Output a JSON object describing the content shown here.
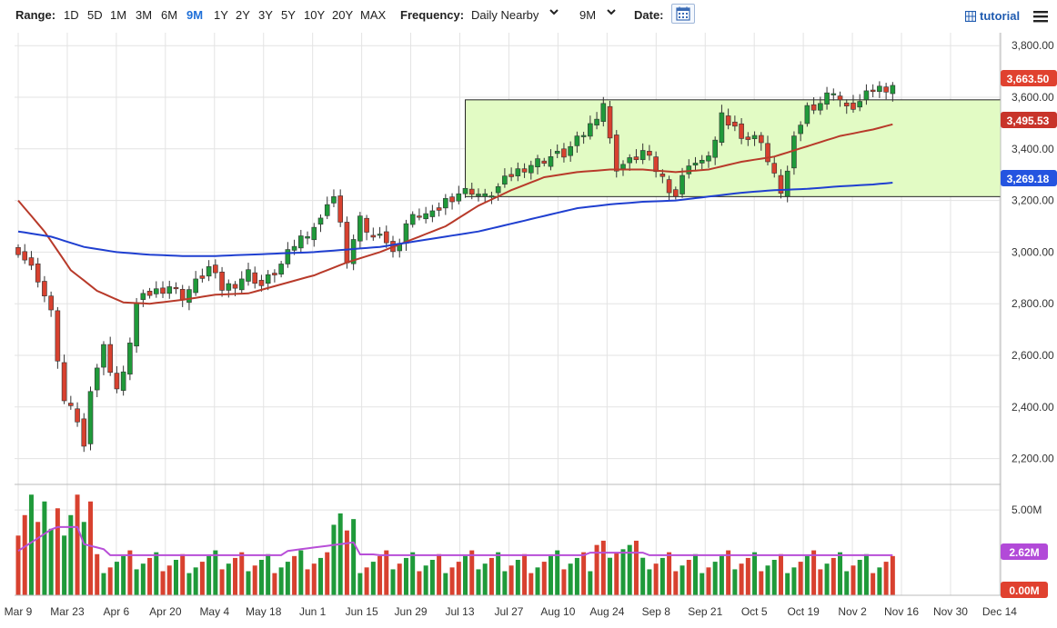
{
  "toolbar": {
    "range_label": "Range:",
    "ranges": [
      "1D",
      "5D",
      "1M",
      "3M",
      "6M",
      "9M",
      "1Y",
      "2Y",
      "3Y",
      "5Y",
      "10Y",
      "20Y",
      "MAX"
    ],
    "active_range": "9M",
    "frequency_label": "Frequency:",
    "frequency_value": "Daily Nearby",
    "period_value": "9M",
    "date_label": "Date:",
    "tutorial_label": "tutorial",
    "icons": [
      "chevron-down-icon",
      "calendar-icon",
      "tutorial-icon",
      "menu-icon"
    ]
  },
  "chart_data": {
    "type": "candlestick",
    "title": "",
    "price_ticks": [
      "3,800.00",
      "3,600.00",
      "3,400.00",
      "3,200.00",
      "3,000.00",
      "2,800.00",
      "2,600.00",
      "2,400.00",
      "2,200.00"
    ],
    "ylim": [
      2100,
      3850
    ],
    "volume_ticks": [
      "5.00M"
    ],
    "volume_ylim": [
      0,
      6.5
    ],
    "x_ticks": [
      "Mar 9",
      "Mar 23",
      "Apr 6",
      "Apr 20",
      "May 4",
      "May 18",
      "Jun 1",
      "Jun 15",
      "Jun 29",
      "Jul 13",
      "Jul 27",
      "Aug 10",
      "Aug 24",
      "Sep 8",
      "Sep 21",
      "Oct 5",
      "Oct 19",
      "Nov 2",
      "Nov 16",
      "Nov 30",
      "Dec 14"
    ],
    "price_anchors": [
      [
        0,
        3010
      ],
      [
        3,
        2900
      ],
      [
        5,
        2760
      ],
      [
        7,
        2420
      ],
      [
        9,
        2350
      ],
      [
        10,
        2240
      ],
      [
        11,
        2480
      ],
      [
        13,
        2630
      ],
      [
        15,
        2470
      ],
      [
        16,
        2520
      ],
      [
        18,
        2800
      ],
      [
        20,
        2840
      ],
      [
        23,
        2870
      ],
      [
        25,
        2830
      ],
      [
        27,
        2880
      ],
      [
        29,
        2940
      ],
      [
        31,
        2860
      ],
      [
        33,
        2880
      ],
      [
        35,
        2920
      ],
      [
        37,
        2870
      ],
      [
        40,
        2950
      ],
      [
        42,
        3030
      ],
      [
        44,
        3080
      ],
      [
        46,
        3120
      ],
      [
        47,
        3200
      ],
      [
        48,
        3215
      ],
      [
        49,
        3100
      ],
      [
        50,
        2970
      ],
      [
        52,
        3120
      ],
      [
        54,
        3050
      ],
      [
        55,
        3090
      ],
      [
        57,
        2990
      ],
      [
        59,
        3110
      ],
      [
        61,
        3150
      ],
      [
        63,
        3140
      ],
      [
        65,
        3200
      ],
      [
        67,
        3230
      ],
      [
        69,
        3240
      ],
      [
        71,
        3210
      ],
      [
        73,
        3250
      ],
      [
        75,
        3300
      ],
      [
        77,
        3330
      ],
      [
        79,
        3350
      ],
      [
        81,
        3370
      ],
      [
        83,
        3380
      ],
      [
        85,
        3430
      ],
      [
        87,
        3490
      ],
      [
        89,
        3580
      ],
      [
        90,
        3430
      ],
      [
        91,
        3330
      ],
      [
        93,
        3350
      ],
      [
        95,
        3390
      ],
      [
        97,
        3320
      ],
      [
        99,
        3250
      ],
      [
        100,
        3220
      ],
      [
        102,
        3350
      ],
      [
        104,
        3340
      ],
      [
        106,
        3430
      ],
      [
        107,
        3520
      ],
      [
        109,
        3480
      ],
      [
        111,
        3440
      ],
      [
        113,
        3440
      ],
      [
        114,
        3350
      ],
      [
        115,
        3290
      ],
      [
        116,
        3240
      ],
      [
        117,
        3310
      ],
      [
        118,
        3430
      ],
      [
        119,
        3500
      ],
      [
        120,
        3560
      ],
      [
        122,
        3580
      ],
      [
        124,
        3630
      ],
      [
        126,
        3550
      ],
      [
        128,
        3580
      ],
      [
        130,
        3630
      ],
      [
        132,
        3640
      ],
      [
        133,
        3650
      ]
    ],
    "series": [
      {
        "name": "",
        "type": "moving-average",
        "color": "#b83a2a",
        "anchors": [
          [
            0,
            3200
          ],
          [
            4,
            3080
          ],
          [
            8,
            2930
          ],
          [
            12,
            2850
          ],
          [
            16,
            2805
          ],
          [
            20,
            2800
          ],
          [
            25,
            2815
          ],
          [
            30,
            2835
          ],
          [
            35,
            2840
          ],
          [
            40,
            2875
          ],
          [
            45,
            2910
          ],
          [
            50,
            2960
          ],
          [
            55,
            3000
          ],
          [
            60,
            3050
          ],
          [
            65,
            3100
          ],
          [
            70,
            3180
          ],
          [
            75,
            3240
          ],
          [
            80,
            3290
          ],
          [
            85,
            3310
          ],
          [
            90,
            3320
          ],
          [
            95,
            3320
          ],
          [
            100,
            3310
          ],
          [
            105,
            3320
          ],
          [
            110,
            3350
          ],
          [
            115,
            3370
          ],
          [
            120,
            3410
          ],
          [
            125,
            3450
          ],
          [
            130,
            3475
          ],
          [
            133,
            3495
          ]
        ]
      },
      {
        "name": "",
        "type": "moving-average",
        "color": "#1f3fd0",
        "anchors": [
          [
            0,
            3080
          ],
          [
            5,
            3060
          ],
          [
            10,
            3020
          ],
          [
            15,
            3000
          ],
          [
            20,
            2990
          ],
          [
            25,
            2985
          ],
          [
            30,
            2985
          ],
          [
            35,
            2990
          ],
          [
            40,
            2995
          ],
          [
            45,
            3000
          ],
          [
            50,
            3010
          ],
          [
            55,
            3020
          ],
          [
            60,
            3040
          ],
          [
            65,
            3060
          ],
          [
            70,
            3080
          ],
          [
            75,
            3110
          ],
          [
            80,
            3140
          ],
          [
            85,
            3170
          ],
          [
            90,
            3185
          ],
          [
            95,
            3195
          ],
          [
            100,
            3200
          ],
          [
            105,
            3215
          ],
          [
            110,
            3230
          ],
          [
            115,
            3240
          ],
          [
            120,
            3245
          ],
          [
            125,
            3255
          ],
          [
            130,
            3262
          ],
          [
            133,
            3269
          ]
        ]
      }
    ],
    "range_box": {
      "from_index": 68,
      "to_index": 147,
      "low": 3215,
      "high": 3590,
      "color": "#e2fbc4"
    },
    "last_values": {
      "price": "3,663.50",
      "ma_red": "3,495.53",
      "ma_blue": "3,269.18",
      "volume": "2.62M",
      "volume_zero": "0.00M"
    },
    "colors": {
      "up": "#1f9a3a",
      "down": "#d8412f",
      "volume_avg": "#b84fd8"
    }
  }
}
